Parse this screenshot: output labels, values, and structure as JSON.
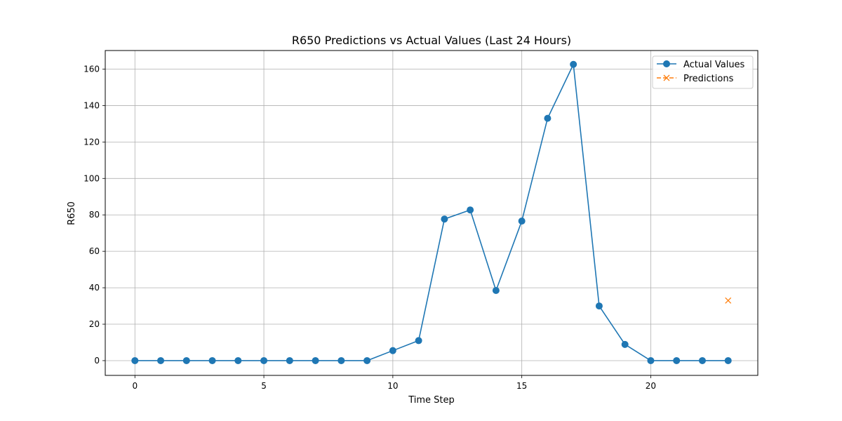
{
  "chart_data": {
    "type": "line",
    "title": "R650 Predictions vs Actual Values (Last 24 Hours)",
    "xlabel": "Time Step",
    "ylabel": "R650",
    "xlim": [
      -1.15,
      24.15
    ],
    "ylim": [
      -8.1,
      170.2
    ],
    "x_ticks": [
      0,
      5,
      10,
      15,
      20
    ],
    "y_ticks": [
      0,
      20,
      40,
      60,
      80,
      100,
      120,
      140,
      160
    ],
    "grid": true,
    "legend_position": "top-right",
    "series": [
      {
        "name": "Actual Values",
        "color": "#1f77b4",
        "marker": "circle",
        "line_style": "solid",
        "x": [
          0,
          1,
          2,
          3,
          4,
          5,
          6,
          7,
          8,
          9,
          10,
          11,
          12,
          13,
          14,
          15,
          16,
          17,
          18,
          19,
          20,
          21,
          22,
          23
        ],
        "values": [
          0,
          0,
          0,
          0,
          0,
          0,
          0,
          0,
          0,
          0,
          5.5,
          11,
          77.7,
          82.7,
          38.5,
          76.6,
          133,
          162.6,
          30,
          8.9,
          0,
          0,
          0,
          0
        ]
      },
      {
        "name": "Predictions",
        "color": "#ff7f0e",
        "marker": "x",
        "line_style": "dashed",
        "x": [
          23
        ],
        "values": [
          33
        ]
      }
    ]
  }
}
